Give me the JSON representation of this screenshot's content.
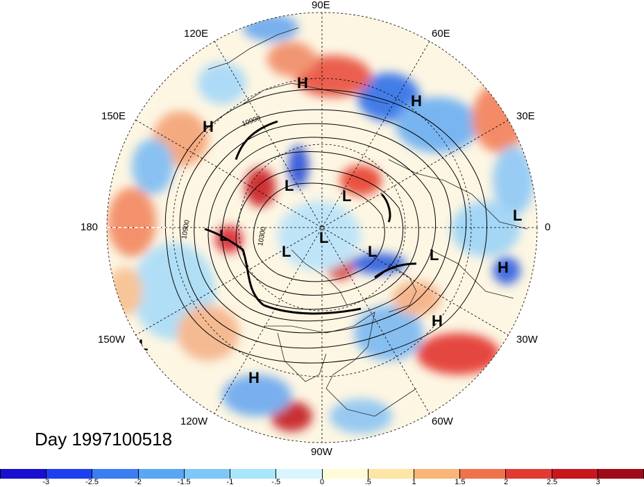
{
  "title": "Day 1997100518",
  "longitude_labels": {
    "top": "90E",
    "top_right": "60E",
    "right_upper": "30E",
    "right": "0",
    "right_lower": "30W",
    "bottom_right": "60W",
    "bottom": "90W",
    "bottom_left": "120W",
    "left_lower": "150W",
    "left": "180",
    "left_upper": "150E",
    "top_left": "120E"
  },
  "contour_labels": {
    "a": "10900",
    "b": "10900",
    "c": "10300"
  },
  "pressure_centers": [
    {
      "type": "H",
      "name": "high-center"
    },
    {
      "type": "L",
      "name": "low-center"
    }
  ],
  "colorbar": {
    "ticks": [
      "-3",
      "-2.5",
      "-2",
      "-1.5",
      "-1",
      "-.5",
      "0",
      ".5",
      "1",
      "1.5",
      "2",
      "2.5",
      "3"
    ],
    "colors": [
      "#1a0fd0",
      "#1d3ff0",
      "#3b7df2",
      "#5aa6f4",
      "#7ec7f7",
      "#a9e6fb",
      "#d9f5fd",
      "#fffbd8",
      "#fde5a6",
      "#f9b478",
      "#f0724c",
      "#e23a33",
      "#c8161f",
      "#a00b1a"
    ]
  }
}
